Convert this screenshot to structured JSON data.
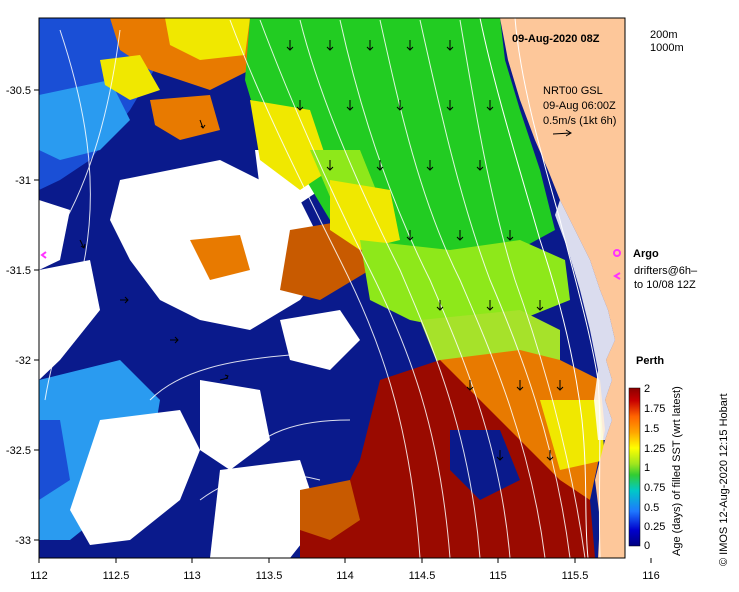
{
  "title": "09-Aug-2020 08Z",
  "depth_legend": {
    "contour_1": "200m",
    "contour_2": "1000m"
  },
  "current_info": {
    "line1": "NRT00 GSL",
    "line2": "09-Aug 06:00Z",
    "line3": "0.5m/s (1kt 6h)"
  },
  "argo": {
    "label": "Argo",
    "color": "#ff33ff"
  },
  "drifters": {
    "line1": "drifters@6h–",
    "line2": "to 10/08 12Z",
    "color": "#ff33ff"
  },
  "city": {
    "label": "Perth"
  },
  "side_credit": "©  IMOS 12-Aug-2020 12:15 Hobart",
  "colorbar": {
    "label": "Age (days) of filled SST (wrt latest)",
    "ticks": [
      "2",
      "1.75",
      "1.5",
      "1.25",
      "1",
      "0.75",
      "0.5",
      "0.25",
      "0"
    ],
    "colors": [
      "#000080",
      "#0000cd",
      "#1e78ff",
      "#00c8c8",
      "#32cd32",
      "#a0e61e",
      "#ffff00",
      "#ffa500",
      "#ff6400",
      "#c80000",
      "#8b0000"
    ]
  },
  "axes": {
    "x_ticks": [
      "112",
      "112.5",
      "113",
      "113.5",
      "114",
      "114.5",
      "115",
      "115.5",
      "116"
    ],
    "y_ticks": [
      "-30.5",
      "-31",
      "-31.5",
      "-32",
      "-32.5",
      "-33"
    ]
  },
  "palette": {
    "land": "#fdc79a",
    "white": "#ffffff",
    "navy": "#0a1a8c",
    "blue": "#1a4fd6",
    "lightblue": "#2a9bf0",
    "yellow": "#f0e800",
    "orange": "#e87a00",
    "darkorange": "#c85a00",
    "darkred": "#9a0a00",
    "green": "#22cc22",
    "lime": "#8ee81a"
  }
}
